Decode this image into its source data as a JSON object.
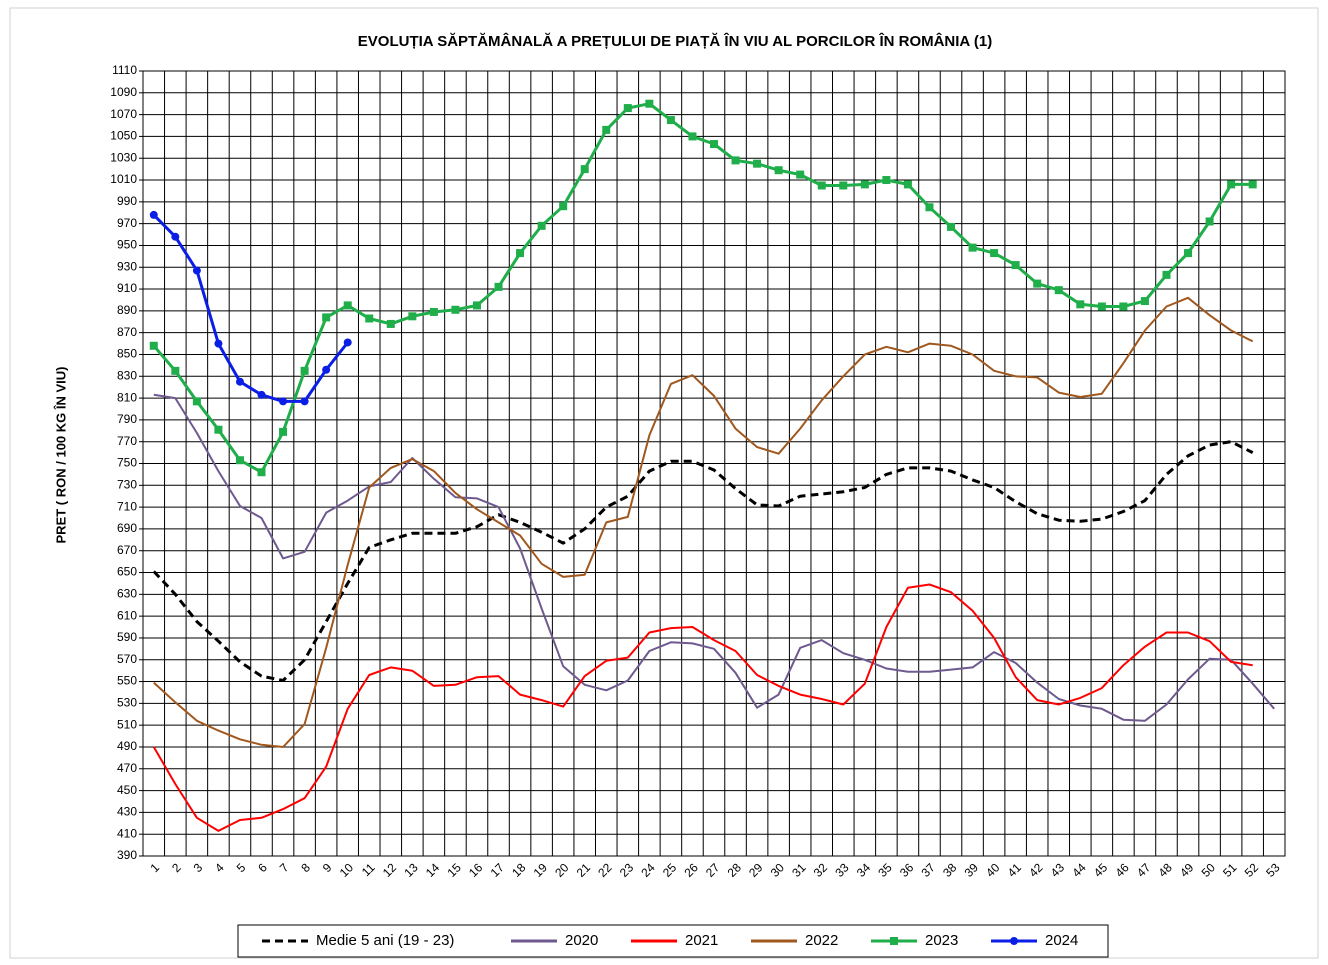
{
  "chart_data": {
    "type": "line",
    "title": "EVOLUȚIA  SĂPTĂMÂNALĂ  A PREȚULUI  DE PIAȚĂ ÎN VIU AL PORCILOR ÎN ROMÂNIA (1)",
    "y_label": "PRET  ( RON / 100 KG ÎN VIU)",
    "categories": [
      "1",
      "2",
      "3",
      "4",
      "5",
      "6",
      "7",
      "8",
      "9",
      "10",
      "11",
      "12",
      "13",
      "14",
      "15",
      "16",
      "17",
      "18",
      "19",
      "20",
      "21",
      "22",
      "23",
      "24",
      "25",
      "26",
      "27",
      "28",
      "29",
      "30",
      "31",
      "32",
      "33",
      "34",
      "35",
      "36",
      "37",
      "38",
      "39",
      "40",
      "41",
      "42",
      "43",
      "44",
      "45",
      "46",
      "47",
      "48",
      "49",
      "50",
      "51",
      "52",
      "53"
    ],
    "ylim": [
      390,
      1110
    ],
    "yticks": [
      390,
      410,
      430,
      450,
      470,
      490,
      510,
      530,
      550,
      570,
      590,
      610,
      630,
      650,
      670,
      690,
      710,
      730,
      750,
      770,
      790,
      810,
      830,
      850,
      870,
      890,
      910,
      930,
      950,
      970,
      990,
      1010,
      1030,
      1050,
      1070,
      1090,
      1110
    ],
    "grid": true,
    "legend": "bottom",
    "series": [
      {
        "name": "Medie 5 ani (19 - 23)",
        "color": "#000000",
        "dash": true,
        "values": [
          651,
          630,
          605,
          587,
          568,
          555,
          551,
          570,
          605,
          640,
          673,
          680,
          686,
          686,
          686,
          692,
          703,
          696,
          687,
          677,
          690,
          710,
          720,
          743,
          752,
          752,
          744,
          727,
          712,
          711,
          720,
          722,
          724,
          728,
          740,
          746,
          746,
          743,
          735,
          728,
          715,
          704,
          698,
          697,
          699,
          706,
          716,
          740,
          757,
          767,
          770,
          760,
          null
        ]
      },
      {
        "name": "2020",
        "color": "#6e5a8f",
        "values": [
          813,
          810,
          778,
          743,
          711,
          700,
          663,
          669,
          705,
          716,
          729,
          733,
          755,
          736,
          719,
          718,
          710,
          672,
          617,
          564,
          547,
          542,
          551,
          578,
          586,
          585,
          580,
          558,
          526,
          538,
          581,
          588,
          576,
          570,
          562,
          559,
          559,
          561,
          563,
          577,
          567,
          549,
          534,
          528,
          525,
          515,
          514,
          529,
          552,
          571,
          570,
          548,
          525
        ]
      },
      {
        "name": "2021",
        "color": "#ff0000",
        "values": [
          490,
          456,
          425,
          413,
          423,
          425,
          433,
          443,
          472,
          525,
          556,
          563,
          560,
          546,
          547,
          554,
          555,
          538,
          533,
          527,
          555,
          569,
          572,
          595,
          599,
          600,
          588,
          578,
          556,
          546,
          538,
          534,
          529,
          548,
          600,
          636,
          639,
          632,
          615,
          590,
          554,
          533,
          529,
          535,
          544,
          565,
          582,
          595,
          595,
          587,
          568,
          565,
          null
        ]
      },
      {
        "name": "2022",
        "color": "#a0581e",
        "values": [
          549,
          531,
          514,
          505,
          497,
          492,
          490,
          511,
          581,
          657,
          728,
          746,
          754,
          743,
          723,
          708,
          696,
          684,
          658,
          646,
          648,
          696,
          701,
          776,
          823,
          831,
          812,
          782,
          765,
          759,
          782,
          808,
          830,
          850,
          857,
          852,
          860,
          858,
          850,
          835,
          830,
          829,
          815,
          811,
          814,
          842,
          872,
          894,
          902,
          886,
          872,
          862,
          null
        ]
      },
      {
        "name": "2023",
        "color": "#1fae4a",
        "marker": "square",
        "values": [
          858,
          835,
          807,
          781,
          753,
          742,
          779,
          835,
          884,
          895,
          883,
          878,
          885,
          889,
          891,
          895,
          912,
          943,
          968,
          986,
          1020,
          1056,
          1076,
          1080,
          1065,
          1050,
          1043,
          1028,
          1025,
          1019,
          1015,
          1005,
          1005,
          1006,
          1010,
          1006,
          985,
          967,
          948,
          943,
          932,
          915,
          909,
          896,
          894,
          894,
          899,
          923,
          943,
          972,
          1006,
          1006,
          null
        ]
      },
      {
        "name": "2024",
        "color": "#0a1ee6",
        "marker": "circle",
        "values": [
          978,
          958,
          927,
          860,
          825,
          813,
          807,
          807,
          836,
          861,
          null,
          null,
          null,
          null,
          null,
          null,
          null,
          null,
          null,
          null,
          null,
          null,
          null,
          null,
          null,
          null,
          null,
          null,
          null,
          null,
          null,
          null,
          null,
          null,
          null,
          null,
          null,
          null,
          null,
          null,
          null,
          null,
          null,
          null,
          null,
          null,
          null,
          null,
          null,
          null,
          null,
          null,
          null
        ]
      }
    ]
  }
}
